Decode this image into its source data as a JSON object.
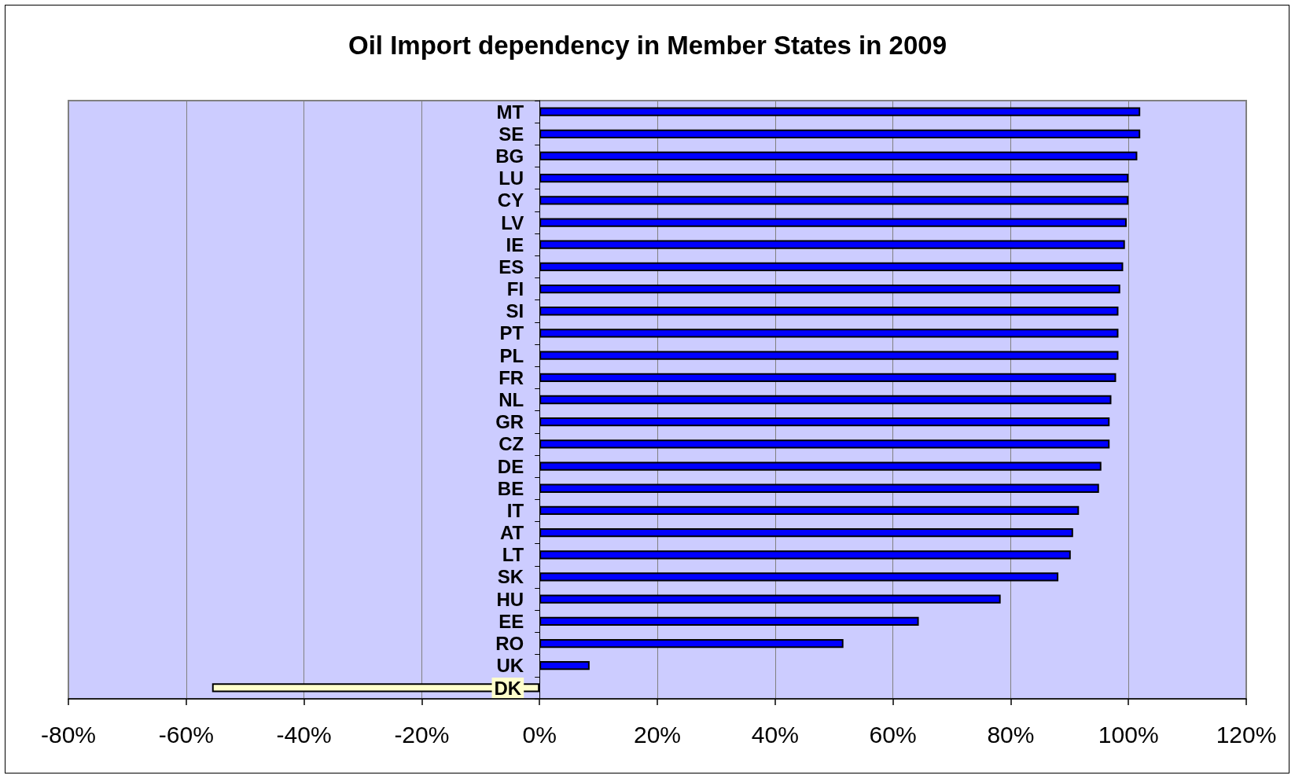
{
  "chart_data": {
    "type": "bar",
    "orientation": "horizontal",
    "title": "Oil Import dependency in Member States in 2009",
    "categories": [
      "MT",
      "SE",
      "BG",
      "LU",
      "CY",
      "LV",
      "IE",
      "ES",
      "FI",
      "SI",
      "PT",
      "PL",
      "FR",
      "NL",
      "GR",
      "CZ",
      "DE",
      "BE",
      "IT",
      "AT",
      "LT",
      "SK",
      "HU",
      "EE",
      "RO",
      "UK",
      "DK"
    ],
    "values": [
      102.0,
      102.0,
      101.5,
      100.0,
      100.0,
      99.7,
      99.4,
      99.1,
      98.6,
      98.3,
      98.3,
      98.3,
      97.9,
      97.1,
      96.8,
      96.8,
      95.4,
      95.0,
      91.6,
      90.6,
      90.2,
      88.1,
      78.3,
      64.4,
      51.6,
      8.5,
      -55.6
    ],
    "colors": [
      "#0000ff",
      "#0000ff",
      "#0000ff",
      "#0000ff",
      "#0000ff",
      "#0000ff",
      "#0000ff",
      "#0000ff",
      "#0000ff",
      "#0000ff",
      "#0000ff",
      "#0000ff",
      "#0000ff",
      "#0000ff",
      "#0000ff",
      "#0000ff",
      "#0000ff",
      "#0000ff",
      "#0000ff",
      "#0000ff",
      "#0000ff",
      "#0000ff",
      "#0000ff",
      "#0000ff",
      "#0000ff",
      "#0000ff",
      "#ffffcc"
    ],
    "xlim": [
      -80,
      120
    ],
    "xticks": [
      {
        "value": -80,
        "label": "-80%"
      },
      {
        "value": -60,
        "label": "-60%"
      },
      {
        "value": -40,
        "label": "-40%"
      },
      {
        "value": -20,
        "label": "-20%"
      },
      {
        "value": 0,
        "label": "0%"
      },
      {
        "value": 20,
        "label": "20%"
      },
      {
        "value": 40,
        "label": "40%"
      },
      {
        "value": 60,
        "label": "60%"
      },
      {
        "value": 80,
        "label": "80%"
      },
      {
        "value": 100,
        "label": "100%"
      },
      {
        "value": 120,
        "label": "120%"
      }
    ],
    "grid": "x"
  }
}
